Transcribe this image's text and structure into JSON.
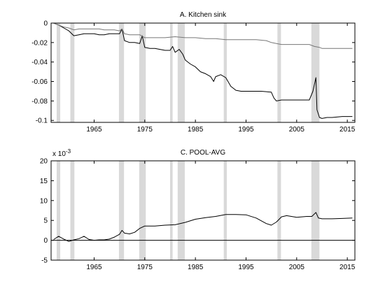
{
  "chart_data": [
    {
      "type": "line",
      "title": "A. Kitchen sink",
      "xlabel": "",
      "ylabel": "",
      "xlim": [
        1956.5,
        2016.5
      ],
      "ylim": [
        -0.102,
        0.0
      ],
      "xticks": [
        1965,
        1975,
        1985,
        1995,
        2005,
        2015
      ],
      "xtick_labels": [
        "1965",
        "1975",
        "1985",
        "1995",
        "2005",
        "2015"
      ],
      "yticks": [
        0,
        -0.02,
        -0.04,
        -0.06,
        -0.08,
        -0.1
      ],
      "ytick_labels": [
        "0",
        "-0.02",
        "-0.04",
        "-0.06",
        "-0.08",
        "-0.1"
      ],
      "zero_line": 0,
      "recessions": [
        [
          1957.6,
          1958.3
        ],
        [
          1960.3,
          1961.1
        ],
        [
          1969.9,
          1970.9
        ],
        [
          1973.9,
          1975.2
        ],
        [
          1980.0,
          1980.5
        ],
        [
          1981.5,
          1982.9
        ],
        [
          1990.6,
          1991.2
        ],
        [
          2001.2,
          2001.9
        ],
        [
          2007.9,
          2009.5
        ]
      ],
      "series": [
        {
          "color": "#000000",
          "points": [
            [
              1957.0,
              0.0
            ],
            [
              1958.0,
              -0.002
            ],
            [
              1959.0,
              -0.005
            ],
            [
              1960.0,
              -0.008
            ],
            [
              1961.0,
              -0.013
            ],
            [
              1962.0,
              -0.012
            ],
            [
              1963.0,
              -0.011
            ],
            [
              1964.0,
              -0.011
            ],
            [
              1965.0,
              -0.011
            ],
            [
              1966.0,
              -0.012
            ],
            [
              1967.0,
              -0.012
            ],
            [
              1968.0,
              -0.011
            ],
            [
              1969.0,
              -0.011
            ],
            [
              1970.0,
              -0.011
            ],
            [
              1970.5,
              -0.006
            ],
            [
              1971.0,
              -0.018
            ],
            [
              1972.0,
              -0.02
            ],
            [
              1973.0,
              -0.02
            ],
            [
              1974.0,
              -0.021
            ],
            [
              1974.5,
              -0.013
            ],
            [
              1975.0,
              -0.025
            ],
            [
              1976.0,
              -0.026
            ],
            [
              1977.0,
              -0.026
            ],
            [
              1978.0,
              -0.027
            ],
            [
              1979.0,
              -0.028
            ],
            [
              1980.0,
              -0.028
            ],
            [
              1980.5,
              -0.024
            ],
            [
              1981.0,
              -0.03
            ],
            [
              1981.8,
              -0.027
            ],
            [
              1982.5,
              -0.032
            ],
            [
              1983.0,
              -0.038
            ],
            [
              1984.0,
              -0.042
            ],
            [
              1985.0,
              -0.045
            ],
            [
              1986.0,
              -0.05
            ],
            [
              1987.0,
              -0.052
            ],
            [
              1988.0,
              -0.055
            ],
            [
              1988.6,
              -0.06
            ],
            [
              1989.0,
              -0.055
            ],
            [
              1990.0,
              -0.053
            ],
            [
              1991.0,
              -0.056
            ],
            [
              1992.0,
              -0.065
            ],
            [
              1993.0,
              -0.069
            ],
            [
              1994.0,
              -0.07
            ],
            [
              1996.0,
              -0.07
            ],
            [
              1998.0,
              -0.07
            ],
            [
              2000.0,
              -0.071
            ],
            [
              2000.5,
              -0.077
            ],
            [
              2001.0,
              -0.08
            ],
            [
              2002.0,
              -0.079
            ],
            [
              2004.0,
              -0.079
            ],
            [
              2006.0,
              -0.079
            ],
            [
              2007.5,
              -0.079
            ],
            [
              2008.2,
              -0.07
            ],
            [
              2008.8,
              -0.056
            ],
            [
              2009.0,
              -0.089
            ],
            [
              2009.5,
              -0.097
            ],
            [
              2010.0,
              -0.098
            ],
            [
              2011.0,
              -0.097
            ],
            [
              2012.0,
              -0.097
            ],
            [
              2014.0,
              -0.096
            ],
            [
              2016.0,
              -0.096
            ]
          ]
        },
        {
          "color": "#777777",
          "points": [
            [
              1957.0,
              0.0
            ],
            [
              1958.0,
              -0.002
            ],
            [
              1959.0,
              -0.004
            ],
            [
              1960.0,
              -0.005
            ],
            [
              1961.0,
              -0.007
            ],
            [
              1962.0,
              -0.006
            ],
            [
              1963.0,
              -0.006
            ],
            [
              1964.0,
              -0.006
            ],
            [
              1965.0,
              -0.006
            ],
            [
              1966.0,
              -0.006
            ],
            [
              1967.0,
              -0.007
            ],
            [
              1968.0,
              -0.007
            ],
            [
              1969.0,
              -0.007
            ],
            [
              1970.0,
              -0.008
            ],
            [
              1970.5,
              -0.006
            ],
            [
              1971.0,
              -0.011
            ],
            [
              1972.0,
              -0.012
            ],
            [
              1973.0,
              -0.012
            ],
            [
              1974.0,
              -0.012
            ],
            [
              1975.0,
              -0.015
            ],
            [
              1977.0,
              -0.015
            ],
            [
              1979.0,
              -0.015
            ],
            [
              1981.0,
              -0.014
            ],
            [
              1983.0,
              -0.015
            ],
            [
              1985.0,
              -0.015
            ],
            [
              1987.0,
              -0.016
            ],
            [
              1989.0,
              -0.016
            ],
            [
              1991.0,
              -0.017
            ],
            [
              1993.0,
              -0.017
            ],
            [
              1995.0,
              -0.017
            ],
            [
              1997.0,
              -0.017
            ],
            [
              1999.0,
              -0.018
            ],
            [
              2000.0,
              -0.02
            ],
            [
              2001.0,
              -0.021
            ],
            [
              2002.0,
              -0.022
            ],
            [
              2004.0,
              -0.022
            ],
            [
              2006.0,
              -0.022
            ],
            [
              2007.5,
              -0.022
            ],
            [
              2008.5,
              -0.024
            ],
            [
              2009.5,
              -0.025
            ],
            [
              2010.0,
              -0.026
            ],
            [
              2012.0,
              -0.026
            ],
            [
              2014.0,
              -0.026
            ],
            [
              2016.0,
              -0.026
            ]
          ]
        }
      ]
    },
    {
      "type": "line",
      "title": "C. POOL-AVG",
      "xlabel": "",
      "ylabel": "",
      "scale_label_base": "x 10",
      "scale_label_exp": "-3",
      "xlim": [
        1956.5,
        2016.5
      ],
      "ylim": [
        -5,
        20
      ],
      "xticks": [
        1965,
        1975,
        1985,
        1995,
        2005,
        2015
      ],
      "xtick_labels": [
        "1965",
        "1975",
        "1985",
        "1995",
        "2005",
        "2015"
      ],
      "yticks": [
        20,
        15,
        10,
        5,
        0,
        -5
      ],
      "ytick_labels": [
        "20",
        "15",
        "10",
        "5",
        "0",
        "-5"
      ],
      "zero_line": 0,
      "recessions": [
        [
          1957.6,
          1958.3
        ],
        [
          1960.3,
          1961.1
        ],
        [
          1969.9,
          1970.9
        ],
        [
          1973.9,
          1975.2
        ],
        [
          1980.0,
          1980.5
        ],
        [
          1981.5,
          1982.9
        ],
        [
          1990.6,
          1991.2
        ],
        [
          2001.2,
          2001.9
        ],
        [
          2007.9,
          2009.5
        ]
      ],
      "series": [
        {
          "color": "#000000",
          "points": [
            [
              1957.0,
              0.2
            ],
            [
              1958.0,
              1.0
            ],
            [
              1959.0,
              0.3
            ],
            [
              1960.0,
              -0.3
            ],
            [
              1961.0,
              0.1
            ],
            [
              1962.0,
              0.4
            ],
            [
              1963.0,
              1.0
            ],
            [
              1964.0,
              0.2
            ],
            [
              1965.0,
              0.0
            ],
            [
              1966.0,
              0.1
            ],
            [
              1967.0,
              0.1
            ],
            [
              1968.0,
              0.3
            ],
            [
              1969.0,
              0.8
            ],
            [
              1970.0,
              1.5
            ],
            [
              1970.5,
              2.5
            ],
            [
              1971.0,
              1.8
            ],
            [
              1972.0,
              1.6
            ],
            [
              1973.0,
              2.0
            ],
            [
              1974.0,
              3.0
            ],
            [
              1975.0,
              3.6
            ],
            [
              1977.0,
              3.6
            ],
            [
              1979.0,
              3.8
            ],
            [
              1981.0,
              3.9
            ],
            [
              1983.0,
              4.5
            ],
            [
              1985.0,
              5.3
            ],
            [
              1987.0,
              5.7
            ],
            [
              1989.0,
              6.0
            ],
            [
              1991.0,
              6.5
            ],
            [
              1993.0,
              6.5
            ],
            [
              1995.0,
              6.4
            ],
            [
              1997.0,
              5.6
            ],
            [
              1999.0,
              4.2
            ],
            [
              2000.0,
              3.8
            ],
            [
              2001.0,
              4.6
            ],
            [
              2002.0,
              5.9
            ],
            [
              2003.0,
              6.2
            ],
            [
              2005.0,
              5.8
            ],
            [
              2007.0,
              6.0
            ],
            [
              2008.0,
              6.0
            ],
            [
              2008.8,
              7.0
            ],
            [
              2009.3,
              5.6
            ],
            [
              2010.0,
              5.4
            ],
            [
              2012.0,
              5.4
            ],
            [
              2014.0,
              5.5
            ],
            [
              2016.0,
              5.6
            ]
          ]
        }
      ]
    }
  ]
}
